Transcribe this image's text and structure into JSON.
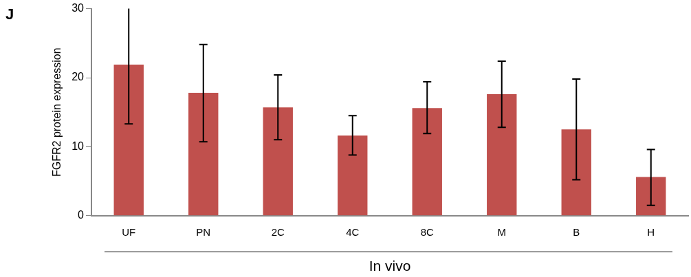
{
  "chart_data": {
    "type": "bar",
    "xlabel": "In vivo",
    "ylabel": "FGFR2 protein expression",
    "annotations": [
      "J"
    ],
    "categories": [
      "UF",
      "PN",
      "2C",
      "4C",
      "8C",
      "M",
      "B",
      "H"
    ],
    "values": [
      21.9,
      17.8,
      15.7,
      11.6,
      15.6,
      17.6,
      12.5,
      5.6
    ],
    "errors": [
      [
        13.3,
        30
      ],
      [
        10.7,
        24.8
      ],
      [
        11.0,
        20.4
      ],
      [
        8.8,
        14.5
      ],
      [
        11.9,
        19.4
      ],
      [
        12.8,
        22.4
      ],
      [
        5.2,
        19.8
      ],
      [
        1.5,
        9.6
      ]
    ],
    "color": "#c0504d",
    "ylim": [
      0,
      30
    ],
    "yticks": [
      0,
      10,
      20,
      30
    ],
    "grid": false,
    "legend": false
  }
}
